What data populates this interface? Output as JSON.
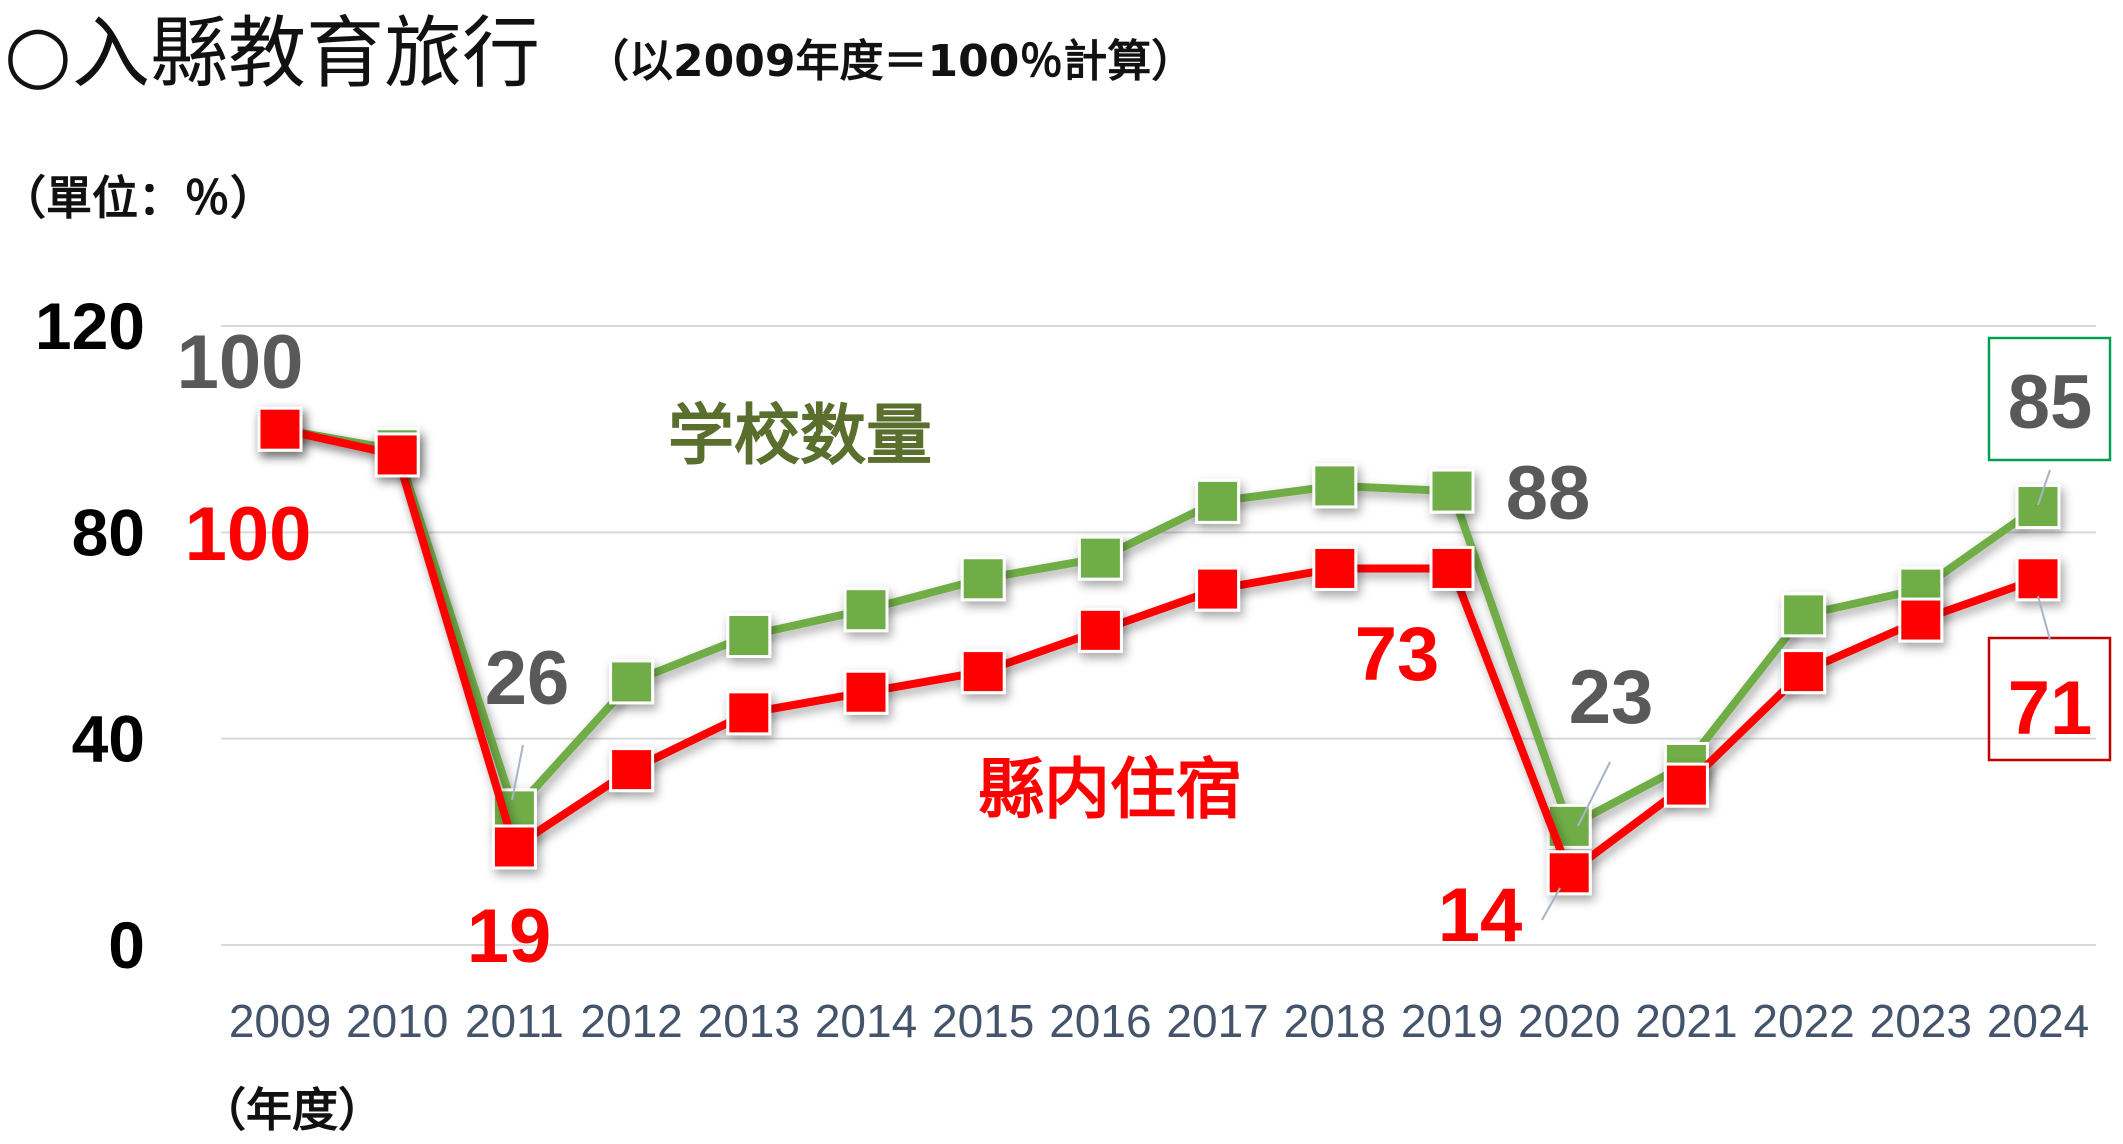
{
  "header": {
    "title": "○入縣教育旅行",
    "subtitle": "（以2009年度＝100％計算）",
    "unit_label": "（單位：％）",
    "x_unit_label": "（年度）"
  },
  "chart_data": {
    "type": "line",
    "title": "○入縣教育旅行",
    "xlabel": "（年度）",
    "ylabel": "（單位：％）",
    "ylim": [
      0,
      120
    ],
    "yticks": [
      "0",
      "40",
      "80",
      "120"
    ],
    "grid": true,
    "categories": [
      "2009",
      "2010",
      "2011",
      "2012",
      "2013",
      "2014",
      "2015",
      "2016",
      "2017",
      "2018",
      "2019",
      "2020",
      "2021",
      "2022",
      "2023",
      "2024"
    ],
    "series": [
      {
        "name": "学校数量",
        "color": "#70ad47",
        "label_color": "#5a6e2e",
        "values": [
          100,
          96,
          26,
          51,
          60,
          65,
          71,
          75,
          86,
          89,
          88,
          23,
          35,
          64,
          69,
          85
        ]
      },
      {
        "name": "縣内住宿",
        "color": "#ff0000",
        "label_color": "#ff0000",
        "values": [
          100,
          95,
          19,
          34,
          45,
          49,
          53,
          61,
          69,
          73,
          73,
          14,
          31,
          53,
          63,
          71
        ]
      }
    ],
    "data_labels": [
      {
        "series": 0,
        "category": "2009",
        "text": "100",
        "color": "#595959"
      },
      {
        "series": 1,
        "category": "2009",
        "text": "100",
        "color": "#ff0000"
      },
      {
        "series": 0,
        "category": "2011",
        "text": "26",
        "color": "#595959"
      },
      {
        "series": 1,
        "category": "2011",
        "text": "19",
        "color": "#ff0000"
      },
      {
        "series": 1,
        "category": "2019",
        "text": "73",
        "color": "#ff0000"
      },
      {
        "series": 0,
        "category": "2019",
        "text": "88",
        "color": "#595959"
      },
      {
        "series": 0,
        "category": "2020",
        "text": "23",
        "color": "#595959"
      },
      {
        "series": 1,
        "category": "2020",
        "text": "14",
        "color": "#ff0000"
      },
      {
        "series": 0,
        "category": "2024",
        "text": "85",
        "color": "#595959",
        "boxed": true,
        "box_color": "#00a050"
      },
      {
        "series": 1,
        "category": "2024",
        "text": "71",
        "color": "#ff0000",
        "boxed": true,
        "box_color": "#c00000"
      }
    ]
  }
}
